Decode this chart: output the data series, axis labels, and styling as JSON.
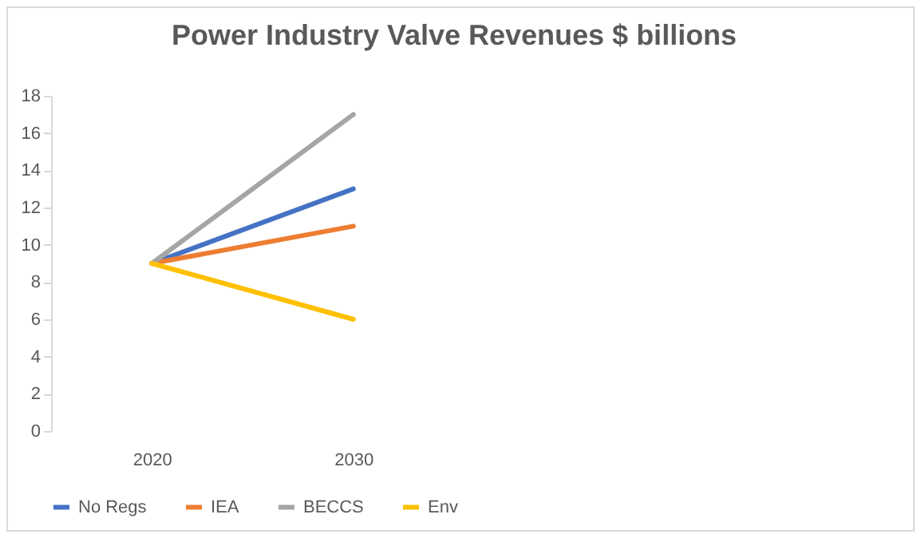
{
  "chart_data": {
    "type": "line",
    "title": "Power Industry  Valve Revenues $ billions",
    "categories": [
      "2020",
      "2030",
      null,
      null
    ],
    "series": [
      {
        "name": "No Regs",
        "color": "#4472c4",
        "values": [
          9,
          13,
          null,
          null
        ]
      },
      {
        "name": "IEA",
        "color": "#ed7d31",
        "values": [
          9,
          11,
          null,
          null
        ]
      },
      {
        "name": "BECCS",
        "color": "#a5a5a5",
        "values": [
          9,
          17,
          null,
          null
        ]
      },
      {
        "name": "Env",
        "color": "#ffc000",
        "values": [
          9,
          6,
          null,
          null
        ]
      }
    ],
    "ylim": [
      0,
      18
    ],
    "yticks": [
      0,
      2,
      4,
      6,
      8,
      10,
      12,
      14,
      16,
      18
    ],
    "grid": false,
    "legend": "bottom",
    "marker": "none"
  }
}
